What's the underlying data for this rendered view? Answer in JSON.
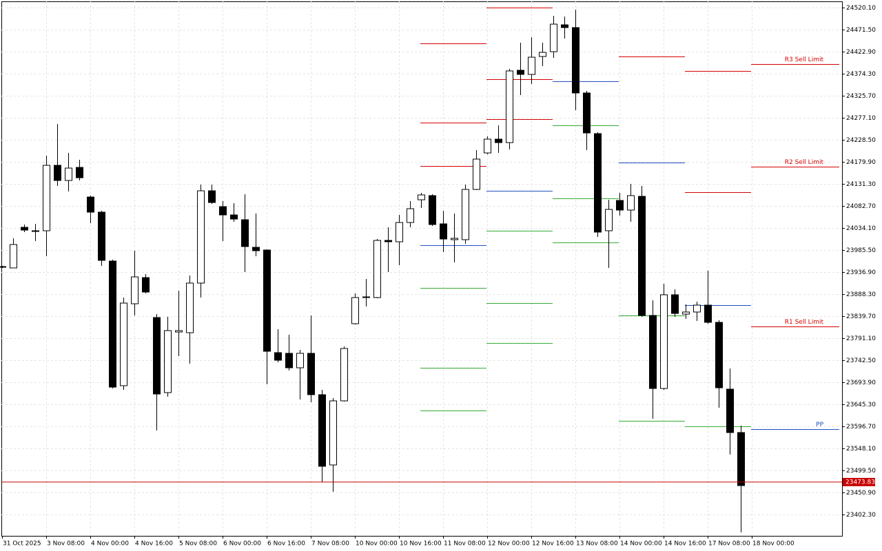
{
  "chart_data": {
    "type": "candlestick",
    "categories": [
      "31 Oct 2025",
      null,
      null,
      null,
      "3 Nov 08:00",
      null,
      null,
      null,
      "4 Nov 00:00",
      null,
      null,
      null,
      "4 Nov 16:00",
      null,
      null,
      null,
      "5 Nov 08:00",
      null,
      null,
      null,
      "6 Nov 00:00",
      null,
      null,
      null,
      "6 Nov 16:00",
      null,
      null,
      null,
      "7 Nov 08:00",
      null,
      null,
      null,
      "10 Nov 00:00",
      null,
      null,
      null,
      "10 Nov 16:00",
      null,
      null,
      null,
      "11 Nov 08:00",
      null,
      null,
      null,
      "12 Nov 00:00",
      null,
      null,
      null,
      "12 Nov 16:00",
      null,
      null,
      null,
      "13 Nov 08:00",
      null,
      null,
      null,
      "14 Nov 00:00",
      null,
      null,
      null,
      "14 Nov 16:00",
      null,
      null,
      null,
      "17 Nov 08:00",
      null,
      null,
      null,
      "18 Nov 00:00"
    ],
    "open": [
      23949.0,
      23946.0,
      24035.6,
      24028.0,
      24028.0,
      24172.3,
      24138.9,
      24167.7,
      24102.4,
      24069.0,
      23961.2,
      23686.3,
      23867.0,
      23924.7,
      23836.6,
      23671.1,
      23804.7,
      23803.2,
      23912.6,
      24116.1,
      24081.2,
      24062.9,
      24052.3,
      23991.5,
      23985.5,
      23759.2,
      23757.7,
      23725.8,
      23757.7,
      23666.5,
      23511.6,
      23652.9,
      23823.0,
      23880.7,
      23880.7,
      24006.7,
      24003.7,
      24046.2,
      24096.3,
      24105.5,
      24043.2,
      24008.3,
      24008.3,
      24119.1,
      24199.6,
      24230.0,
      24222.4,
      24381.9,
      24372.8,
      24412.3,
      24422.9,
      24482.1,
      24476.0,
      24331.8,
      24242.2,
      24028.0,
      24094.8,
      24073.6,
      24103.9,
      23841.2,
      23680.2,
      23886.8,
      23844.2,
      23848.8,
      23864.0,
      23826.0,
      23678.7,
      23583.0,
      null
    ],
    "high": [
      23950.5,
      24011.3,
      24041.7,
      24043.2,
      24193.6,
      24263.4,
      24199.6,
      24184.4,
      24105.5,
      24072.0,
      23964.2,
      23880.7,
      23984.0,
      23932.3,
      23844.2,
      23838.2,
      23895.9,
      23929.3,
      24129.8,
      24129.8,
      24093.3,
      24088.7,
      24108.5,
      24066.0,
      23987.0,
      23810.8,
      23798.7,
      23765.2,
      23841.2,
      23677.2,
      23658.9,
      23772.8,
      23889.8,
      23921.7,
      24009.8,
      24035.6,
      24062.9,
      24093.3,
      24111.5,
      24108.5,
      24072.0,
      24066.0,
      24129.8,
      24205.7,
      24236.1,
      24260.4,
      24384.9,
      24442.6,
      24454.8,
      24442.6,
      24501.9,
      24500.3,
      24515.5,
      24336.3,
      24245.2,
      24096.3,
      24111.5,
      24131.3,
      24126.7,
      23874.6,
      23911.1,
      23898.9,
      23865.5,
      23871.6,
      23939.9,
      23830.6,
      23724.2,
      23598.2,
      null
    ],
    "low": [
      23946.0,
      23946.0,
      24025.0,
      24005.2,
      23971.8,
      24126.7,
      24114.6,
      24138.9,
      24044.7,
      23950.5,
      23680.2,
      23677.2,
      23841.2,
      23889.8,
      23587.5,
      23662.0,
      23751.6,
      23734.9,
      23880.7,
      24087.2,
      24005.2,
      24047.7,
      23936.9,
      23971.8,
      23689.3,
      23737.9,
      23719.7,
      23655.9,
      23649.8,
      23473.6,
      23452.4,
      23651.3,
      23821.4,
      23860.9,
      23879.2,
      23936.9,
      23952.1,
      24035.6,
      24078.1,
      24038.6,
      23980.9,
      23958.1,
      23999.1,
      24117.6,
      24196.6,
      24199.6,
      24207.2,
      24327.2,
      24351.5,
      24391.0,
      24409.2,
      24451.7,
      24293.8,
      24205.7,
      24014.3,
      23946.0,
      24061.4,
      24047.7,
      23838.2,
      23613.4,
      23677.2,
      23838.2,
      23833.6,
      23829.0,
      23823.0,
      23637.7,
      23534.4,
      23362.8,
      null
    ],
    "close": [
      23947.5,
      23997.6,
      24029.5,
      24026.5,
      24172.3,
      24138.9,
      24166.2,
      24144.9,
      24069.0,
      23962.7,
      23683.2,
      23868.5,
      23926.2,
      23892.8,
      23668.0,
      23807.8,
      23807.8,
      23912.6,
      24116.1,
      24090.3,
      24062.9,
      24053.8,
      23993.1,
      23984.0,
      23762.2,
      23742.5,
      23725.8,
      23757.7,
      23666.5,
      23508.6,
      23652.9,
      23768.3,
      23880.7,
      23882.2,
      24006.7,
      24003.7,
      24046.2,
      24076.6,
      24107.0,
      24041.7,
      24009.8,
      24011.3,
      24119.1,
      24186.0,
      24230.0,
      24222.4,
      24380.4,
      24372.8,
      24410.7,
      24421.4,
      24483.6,
      24476.0,
      24331.8,
      24243.7,
      24025.0,
      24075.1,
      24073.6,
      24105.5,
      23841.2,
      23680.2,
      23886.8,
      23845.7,
      23848.8,
      23864.0,
      23826.0,
      23681.7,
      23583.0,
      23466.0,
      null
    ],
    "bull_color": "#ffffff",
    "bear_color": "#000000",
    "ylim": [
      23355.2,
      24533.8
    ],
    "yticks": [
      {
        "value": 23402.3,
        "label": "23402.30"
      },
      {
        "value": 23450.9,
        "label": "23450.90"
      },
      {
        "value": 23499.5,
        "label": "23499.50"
      },
      {
        "value": 23548.1,
        "label": "23548.10"
      },
      {
        "value": 23596.7,
        "label": "23596.70"
      },
      {
        "value": 23645.3,
        "label": "23645.30"
      },
      {
        "value": 23693.9,
        "label": "23693.90"
      },
      {
        "value": 23742.5,
        "label": "23742.50"
      },
      {
        "value": 23791.1,
        "label": "23791.10"
      },
      {
        "value": 23839.7,
        "label": "23839.70"
      },
      {
        "value": 23888.3,
        "label": "23888.30"
      },
      {
        "value": 23936.9,
        "label": "23936.90"
      },
      {
        "value": 23985.5,
        "label": "23985.50"
      },
      {
        "value": 24034.1,
        "label": "24034.10"
      },
      {
        "value": 24082.7,
        "label": "24082.70"
      },
      {
        "value": 24131.3,
        "label": "24131.30"
      },
      {
        "value": 24179.9,
        "label": "24179.90"
      },
      {
        "value": 24228.5,
        "label": "24228.50"
      },
      {
        "value": 24277.1,
        "label": "24277.10"
      },
      {
        "value": 24325.7,
        "label": "24325.70"
      },
      {
        "value": 24374.3,
        "label": "24374.30"
      },
      {
        "value": 24422.9,
        "label": "24422.90"
      },
      {
        "value": 24471.5,
        "label": "24471.50"
      },
      {
        "value": 24520.1,
        "label": "24520.10"
      }
    ],
    "grid": true,
    "current_price": 23473.83,
    "current_price_color": "#c80000",
    "pivot_periods": [
      [
        {
          "value": 24441.1,
          "color": "#d40000"
        },
        {
          "value": 24266.5,
          "color": "#d40000"
        },
        {
          "value": 24170.8,
          "color": "#d40000"
        },
        {
          "value": 23996.1,
          "color": "#1f4fbf"
        },
        {
          "value": 23901.9,
          "color": "#33aa33"
        },
        {
          "value": 23725.8,
          "color": "#33aa33"
        },
        {
          "value": 23631.6,
          "color": "#33aa33"
        }
      ],
      [
        {
          "value": 24520.1,
          "color": "#d40000"
        },
        {
          "value": 24362.2,
          "color": "#d40000"
        },
        {
          "value": 24274.1,
          "color": "#d40000"
        },
        {
          "value": 24116.1,
          "color": "#1f4fbf"
        },
        {
          "value": 24028.0,
          "color": "#33aa33"
        },
        {
          "value": 23868.5,
          "color": "#33aa33"
        },
        {
          "value": 23780.3,
          "color": "#33aa33"
        }
      ],
      [
        {
          "value": 24357.6,
          "color": "#1f4fbf"
        },
        {
          "value": 24260.4,
          "color": "#33aa33"
        },
        {
          "value": 24099.4,
          "color": "#33aa33"
        },
        {
          "value": 24002.2,
          "color": "#33aa33"
        }
      ],
      [
        {
          "value": 24412.3,
          "color": "#d40000"
        },
        {
          "value": 24178.4,
          "color": "#1f4fbf"
        },
        {
          "value": 23841.2,
          "color": "#33aa33"
        },
        {
          "value": 23608.8,
          "color": "#33aa33"
        }
      ],
      [
        {
          "value": 24380.4,
          "color": "#d40000"
        },
        {
          "value": 24113.1,
          "color": "#d40000"
        },
        {
          "value": 23864.0,
          "color": "#1f4fbf"
        },
        {
          "value": 23596.7,
          "color": "#33aa33"
        }
      ],
      [
        {
          "value": 24395.6,
          "color": "#d40000",
          "label": "R3 Sell Limit"
        },
        {
          "value": 24169.3,
          "color": "#d40000",
          "label": "R2 Sell Limit"
        },
        {
          "value": 23816.9,
          "color": "#d40000",
          "label": "R1 Sell Limit"
        },
        {
          "value": 23590.6,
          "color": "#1f4fbf",
          "label": "PP"
        }
      ]
    ]
  }
}
